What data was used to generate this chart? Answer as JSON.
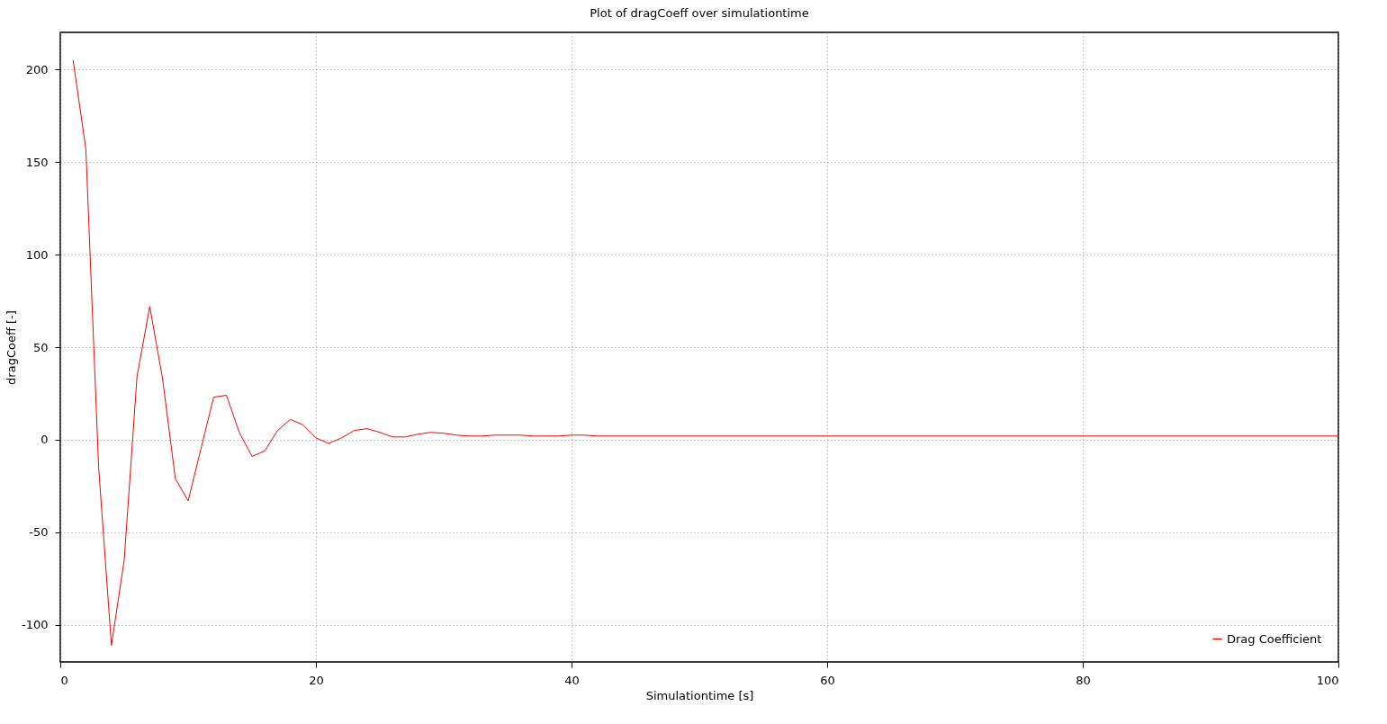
{
  "chart_data": {
    "type": "line",
    "title": "Plot of dragCoeff over simulationtime",
    "xlabel": "Simulationtime [s]",
    "ylabel": "dragCoeff [-]",
    "x": [
      1,
      2,
      3,
      4,
      5,
      6,
      7,
      8,
      9,
      10,
      11,
      12,
      13,
      14,
      15,
      16,
      17,
      18,
      19,
      20,
      21,
      22,
      23,
      24,
      25,
      26,
      27,
      28,
      29,
      30,
      31,
      32,
      33,
      34,
      35,
      36,
      37,
      38,
      39,
      40,
      41,
      42,
      45,
      50,
      60,
      70,
      80,
      90,
      100
    ],
    "series": [
      {
        "name": "Drag Coefficient",
        "color": "#ff0000",
        "values": [
          205,
          157,
          -15,
          -111,
          -65,
          34,
          72,
          33,
          -21,
          -33,
          -5,
          23,
          24,
          4,
          -9,
          -6,
          5,
          11,
          8,
          1,
          -2,
          1,
          5,
          6,
          4,
          1.5,
          1.5,
          3,
          4,
          3.5,
          2.5,
          2,
          2,
          2.5,
          2.5,
          2.5,
          2,
          2,
          2,
          2.5,
          2.5,
          2,
          2,
          2,
          2,
          2,
          2,
          2,
          2
        ]
      }
    ],
    "xlim": [
      0,
      100
    ],
    "ylim": [
      -120,
      220
    ],
    "xticks": [
      0,
      20,
      40,
      60,
      80,
      100
    ],
    "yticks": [
      -100,
      -50,
      0,
      50,
      100,
      150,
      200
    ],
    "grid": true,
    "legend": "bottom right",
    "line_style": "solid"
  }
}
